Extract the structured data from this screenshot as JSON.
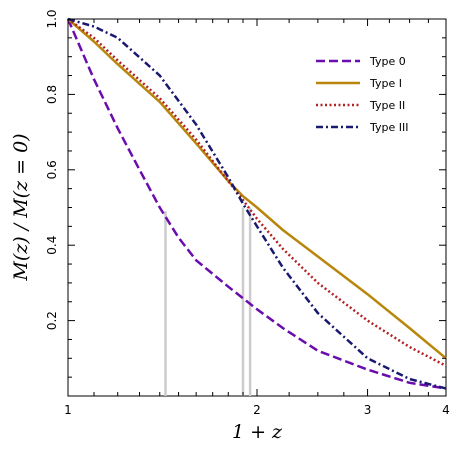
{
  "chart_data": {
    "type": "line",
    "xlabel": "1 + z",
    "ylabel": "M(z) / M(z = 0)",
    "x_scale": "log",
    "xlim": [
      1,
      4
    ],
    "ylim": [
      0.0,
      1.0
    ],
    "x_ticks": [
      1,
      2,
      3,
      4
    ],
    "x_tick_labels": [
      "1",
      "2",
      "3",
      "4"
    ],
    "y_ticks": [
      0.2,
      0.4,
      0.6,
      0.8,
      1.0
    ],
    "y_tick_labels": [
      "0.2",
      "0.4",
      "0.6",
      "0.8",
      "1.0"
    ],
    "grid": false,
    "legend_position": "top-right",
    "series": [
      {
        "name": "Type 0",
        "color": "#6a0dad",
        "dash": "dashed",
        "x": [
          1.0,
          1.1,
          1.2,
          1.3,
          1.4,
          1.5,
          1.6,
          1.8,
          2.0,
          2.2,
          2.5,
          3.0,
          3.5,
          4.0
        ],
        "y": [
          1.0,
          0.84,
          0.71,
          0.6,
          0.5,
          0.42,
          0.36,
          0.29,
          0.23,
          0.18,
          0.12,
          0.07,
          0.035,
          0.02
        ]
      },
      {
        "name": "Type I",
        "color": "#b8860b",
        "dash": "solid",
        "x": [
          1.0,
          1.1,
          1.2,
          1.4,
          1.6,
          1.8,
          1.9,
          2.0,
          2.2,
          2.5,
          3.0,
          3.5,
          4.0
        ],
        "y": [
          1.0,
          0.94,
          0.88,
          0.78,
          0.67,
          0.57,
          0.53,
          0.5,
          0.44,
          0.37,
          0.27,
          0.18,
          0.1
        ]
      },
      {
        "name": "Type II",
        "color": "#b22222",
        "dash": "dotted",
        "x": [
          1.0,
          1.1,
          1.2,
          1.4,
          1.6,
          1.8,
          1.9,
          2.0,
          2.2,
          2.5,
          3.0,
          3.5,
          4.0
        ],
        "y": [
          1.0,
          0.95,
          0.89,
          0.79,
          0.68,
          0.57,
          0.52,
          0.47,
          0.39,
          0.3,
          0.2,
          0.13,
          0.08
        ]
      },
      {
        "name": "Type III",
        "color": "#191970",
        "dash": "dashdot",
        "x": [
          1.0,
          1.1,
          1.2,
          1.4,
          1.6,
          1.8,
          1.9,
          2.0,
          2.2,
          2.5,
          3.0,
          3.5,
          4.0
        ],
        "y": [
          1.0,
          0.98,
          0.95,
          0.85,
          0.72,
          0.58,
          0.51,
          0.45,
          0.34,
          0.22,
          0.1,
          0.045,
          0.02
        ]
      }
    ],
    "reference_lines": [
      {
        "x": 1.43,
        "y_top": 0.49,
        "color": "#cccccc"
      },
      {
        "x": 1.9,
        "y_top": 0.5,
        "color": "#cccccc"
      },
      {
        "x": 1.95,
        "y_top": 0.5,
        "color": "#cccccc"
      }
    ]
  }
}
